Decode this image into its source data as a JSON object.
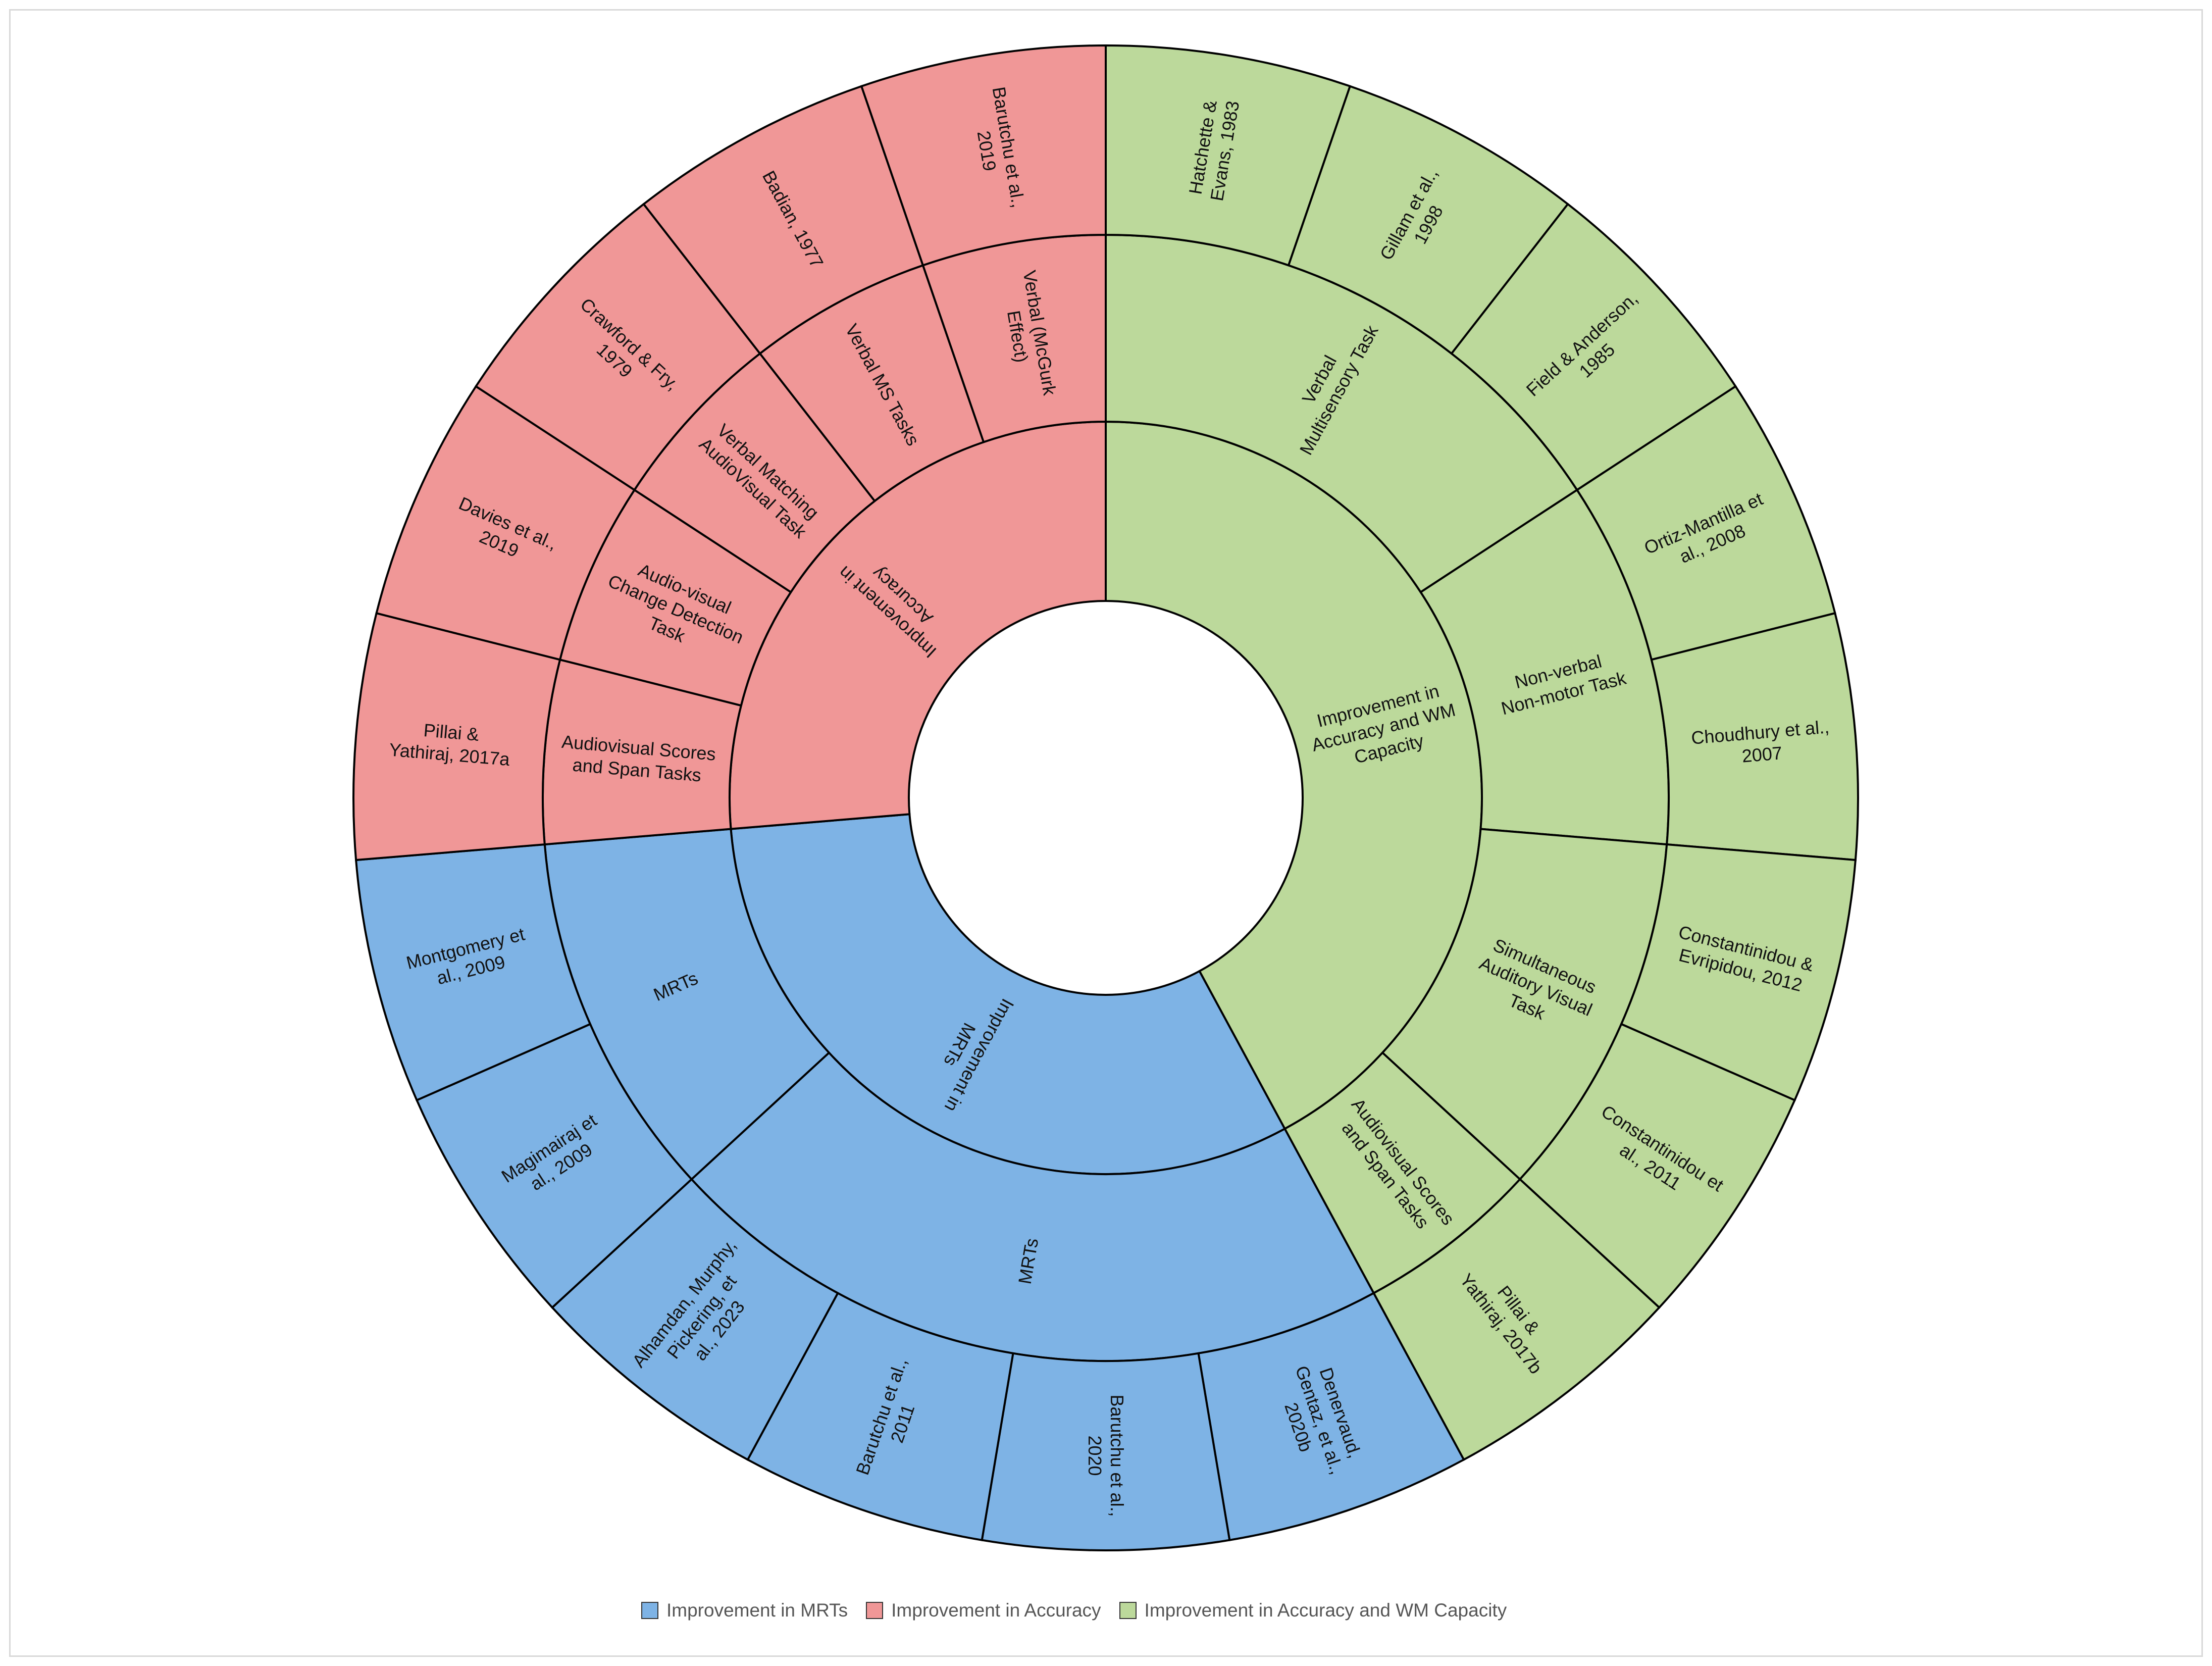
{
  "chart_data": {
    "type": "sunburst",
    "title": "",
    "legend_position": "bottom",
    "colors": {
      "Improvement in MRTs": "#7EB3E5",
      "Improvement in Accuracy": "#F09797",
      "Improvement in Accuracy and WM Capacity": "#BCD99B"
    },
    "legend": [
      "Improvement in MRTs",
      "Improvement in Accuracy",
      "Improvement in Accuracy and WM Capacity"
    ],
    "hierarchy": [
      {
        "label": "Improvement in Accuracy and WM Capacity",
        "children": [
          {
            "label": "Verbal Multisensory Task",
            "children": [
              {
                "label": "Hatchette & Evans, 1983",
                "value": 1
              },
              {
                "label": "Gillam et al., 1998",
                "value": 1
              },
              {
                "label": "Field & Anderson, 1985",
                "value": 1
              }
            ]
          },
          {
            "label": "Non-verbal Non-motor Task",
            "children": [
              {
                "label": "Ortiz-Mantilla et al., 2008",
                "value": 1
              },
              {
                "label": "Choudhury et al., 2007",
                "value": 1
              }
            ]
          },
          {
            "label": "Simultaneous Auditory Visual Task",
            "children": [
              {
                "label": "Constantinidou & Evripidou, 2012",
                "value": 1
              },
              {
                "label": "Constantinidou et al., 2011",
                "value": 1
              }
            ]
          },
          {
            "label": "Audiovisual Scores and Span Tasks",
            "children": [
              {
                "label": "Pillai & Yathiraj, 2017b",
                "value": 1
              }
            ]
          }
        ]
      },
      {
        "label": "Improvement in MRTs",
        "children": [
          {
            "label": "MRTs",
            "children": [
              {
                "label": "Denervaud, Gentaz, et al., 2020b",
                "value": 1
              },
              {
                "label": "Barutchu et al., 2020",
                "value": 1
              },
              {
                "label": "Barutchu et al., 2011",
                "value": 1
              },
              {
                "label": "Alhamdan, Murphy, Pickering, et al., 2023",
                "value": 1
              }
            ]
          },
          {
            "label": "MRTs",
            "children": [
              {
                "label": "Magimairaj et al., 2009",
                "value": 1
              },
              {
                "label": "Montgomery et al., 2009",
                "value": 1
              }
            ]
          }
        ]
      },
      {
        "label": "Improvement in Accuracy",
        "children": [
          {
            "label": "Audiovisual Scores and Span Tasks",
            "children": [
              {
                "label": "Pillai & Yathiraj, 2017a",
                "value": 1
              }
            ]
          },
          {
            "label": "Audio-visual Change Detection Task",
            "children": [
              {
                "label": "Davies et al., 2019",
                "value": 1
              }
            ]
          },
          {
            "label": "Verbal Matching AudioVisual Task",
            "children": [
              {
                "label": "Crawford & Fry, 1979",
                "value": 1
              }
            ]
          },
          {
            "label": "Verbal MS Tasks",
            "children": [
              {
                "label": "Badian, 1977",
                "value": 1
              }
            ]
          },
          {
            "label": "Verbal (McGurk Effect)",
            "children": [
              {
                "label": "Barutchu et al., 2019",
                "value": 1
              }
            ]
          }
        ]
      }
    ]
  }
}
